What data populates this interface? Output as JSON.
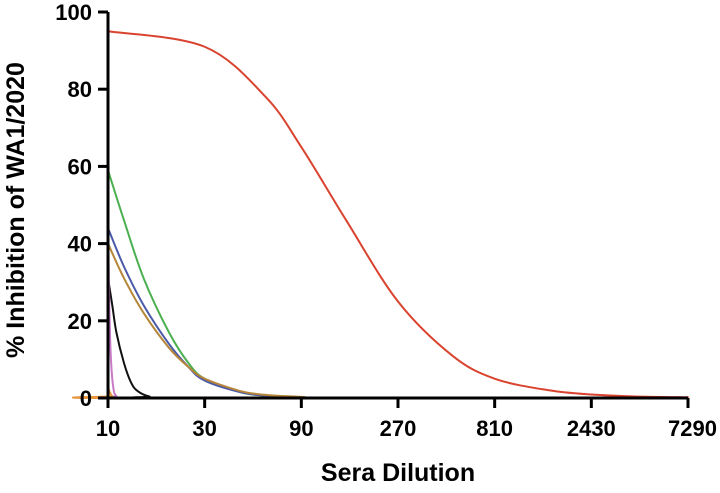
{
  "chart_data": {
    "type": "line",
    "title": "",
    "xlabel": "Sera Dilution",
    "ylabel": "% Inhibition of WA1/2020",
    "x_scale": "log3",
    "xlim": [
      10,
      7290
    ],
    "ylim": [
      0,
      100
    ],
    "grid": false,
    "legend": "none",
    "x_ticks": [
      10,
      30,
      90,
      270,
      810,
      2430,
      7290
    ],
    "x_tick_labels": [
      "10",
      "30",
      "90",
      "270",
      "810",
      "2430",
      "7290"
    ],
    "y_ticks": [
      0,
      20,
      40,
      60,
      80,
      100
    ],
    "y_tick_labels": [
      "0",
      "20",
      "40",
      "60",
      "80",
      "100"
    ],
    "series": [
      {
        "color": "#d9432f",
        "x": [
          10,
          30,
          60,
          90,
          150,
          270,
          500,
          810,
          1500,
          2430,
          4000,
          7290
        ],
        "values": [
          95,
          91,
          78,
          65,
          46,
          25,
          11,
          5,
          2,
          0.9,
          0.4,
          0.2
        ]
      },
      {
        "color": "#4caf50",
        "x": [
          10,
          12,
          15,
          20,
          25,
          30,
          45,
          60,
          90,
          150,
          7290
        ],
        "values": [
          59,
          46,
          31,
          17,
          9,
          5,
          1.5,
          0.6,
          0.2,
          0,
          0
        ]
      },
      {
        "color": "#4a5aa8",
        "x": [
          10,
          12,
          15,
          20,
          25,
          30,
          45,
          60,
          90,
          150,
          7290
        ],
        "values": [
          44,
          34,
          24,
          14,
          8,
          4.5,
          1.5,
          0.6,
          0.2,
          0,
          0
        ]
      },
      {
        "color": "#b5863a",
        "x": [
          10,
          12,
          15,
          20,
          25,
          30,
          45,
          60,
          90,
          150,
          7290
        ],
        "values": [
          40,
          31,
          22,
          13,
          8,
          5,
          1.8,
          0.8,
          0.3,
          0,
          0
        ]
      },
      {
        "color": "#111111",
        "x": [
          10,
          10.5,
          11,
          12,
          13,
          14,
          16,
          20,
          7290
        ],
        "values": [
          31,
          24,
          17,
          9,
          4,
          1.8,
          0.4,
          0,
          0
        ]
      },
      {
        "color": "#c77ac7",
        "x": [
          10,
          10.1,
          10.3,
          10.6,
          11,
          12,
          7290
        ],
        "values": [
          52,
          30,
          12,
          3,
          0.5,
          0,
          0
        ]
      },
      {
        "color": "#e8963c",
        "x": [
          10,
          10.2,
          10.5,
          11,
          7290
        ],
        "values": [
          3,
          1.5,
          0.5,
          0,
          0
        ]
      }
    ]
  }
}
